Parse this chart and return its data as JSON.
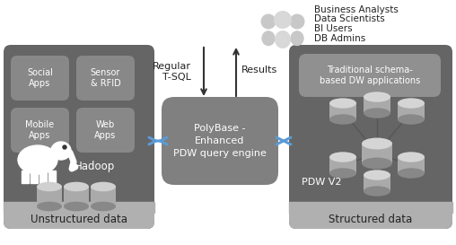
{
  "bg_color": "#ffffff",
  "left_panel_color": "#656565",
  "right_panel_color": "#656565",
  "footer_color": "#b0b0b0",
  "app_box_color": "#888888",
  "trad_box_color": "#909090",
  "polybase_box_color": "#808080",
  "users_text": [
    "Business Analysts",
    "Data Scientists",
    "BI Users",
    "DB Admins"
  ],
  "left_label": "Unstructured data",
  "right_label": "Structured data",
  "center_label": "PolyBase -\nEnhanced\nPDW query engine",
  "arrow_left_label": "Regular\nT-SQL",
  "arrow_right_label": "Results",
  "trad_box_label": "Traditional schema-\nbased DW applications",
  "hadoop_label": "Hadoop",
  "pdw_label": "PDW V2",
  "app_boxes": [
    {
      "label": "Social\nApps",
      "col": 0,
      "row": 0
    },
    {
      "label": "Sensor\n& RFID",
      "col": 1,
      "row": 0
    },
    {
      "label": "Mobile\nApps",
      "col": 0,
      "row": 1
    },
    {
      "label": "Web\nApps",
      "col": 1,
      "row": 1
    }
  ],
  "arrow_color": "#5b9bd5",
  "vert_arrow_color": "#333333",
  "line_color": "#555555"
}
